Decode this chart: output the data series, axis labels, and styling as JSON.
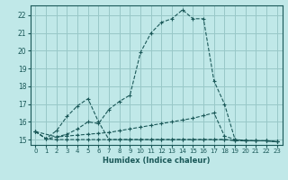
{
  "xlabel": "Humidex (Indice chaleur)",
  "background_color": "#c0e8e8",
  "grid_color": "#98c8c8",
  "line_color": "#1a5858",
  "xlim": [
    -0.5,
    23.5
  ],
  "ylim": [
    14.7,
    22.55
  ],
  "xticks": [
    0,
    1,
    2,
    3,
    4,
    5,
    6,
    7,
    8,
    9,
    10,
    11,
    12,
    13,
    14,
    15,
    16,
    17,
    18,
    19,
    20,
    21,
    22,
    23
  ],
  "yticks": [
    15,
    16,
    17,
    18,
    19,
    20,
    21,
    22
  ],
  "line1_x": [
    0,
    1,
    2,
    3,
    4,
    5,
    6,
    7,
    8,
    9,
    10,
    11,
    12,
    13,
    14,
    15,
    16,
    17,
    18,
    19,
    20,
    21,
    22,
    23
  ],
  "line1_y": [
    15.45,
    15.05,
    15.0,
    15.0,
    15.0,
    15.0,
    15.0,
    15.0,
    15.0,
    15.0,
    15.0,
    15.0,
    15.0,
    15.0,
    15.0,
    15.0,
    15.0,
    15.0,
    15.0,
    14.95,
    14.93,
    14.93,
    14.93,
    14.88
  ],
  "line2_x": [
    0,
    1,
    2,
    3,
    4,
    5,
    6,
    7,
    8,
    9,
    10,
    11,
    12,
    13,
    14,
    15,
    16,
    17,
    18,
    19,
    20,
    21,
    22,
    23
  ],
  "line2_y": [
    15.45,
    15.05,
    15.15,
    15.2,
    15.25,
    15.3,
    15.35,
    15.4,
    15.5,
    15.6,
    15.7,
    15.8,
    15.9,
    16.0,
    16.1,
    16.2,
    16.35,
    16.5,
    15.2,
    15.0,
    14.95,
    14.93,
    14.93,
    14.88
  ],
  "line3_x": [
    0,
    1,
    2,
    3,
    4,
    5,
    6,
    7,
    8,
    9,
    10,
    11,
    12,
    13,
    14,
    15,
    16,
    17,
    18,
    19,
    20,
    21,
    22,
    23
  ],
  "line3_y": [
    15.45,
    15.05,
    15.5,
    16.3,
    16.9,
    17.3,
    16.0,
    15.0,
    15.0,
    15.0,
    15.0,
    15.0,
    15.0,
    15.0,
    15.0,
    15.0,
    15.0,
    15.0,
    15.0,
    14.95,
    14.93,
    14.93,
    14.93,
    14.88
  ],
  "line4_x": [
    0,
    2,
    3,
    4,
    5,
    6,
    7,
    8,
    9,
    10,
    11,
    12,
    13,
    14,
    15,
    16,
    17,
    18,
    19,
    20,
    21,
    22,
    23
  ],
  "line4_y": [
    15.45,
    15.15,
    15.3,
    15.6,
    16.0,
    15.9,
    16.7,
    17.15,
    17.5,
    19.9,
    21.0,
    21.6,
    21.8,
    22.3,
    21.8,
    21.8,
    18.3,
    17.0,
    15.0,
    14.95,
    14.93,
    14.93,
    14.88
  ]
}
